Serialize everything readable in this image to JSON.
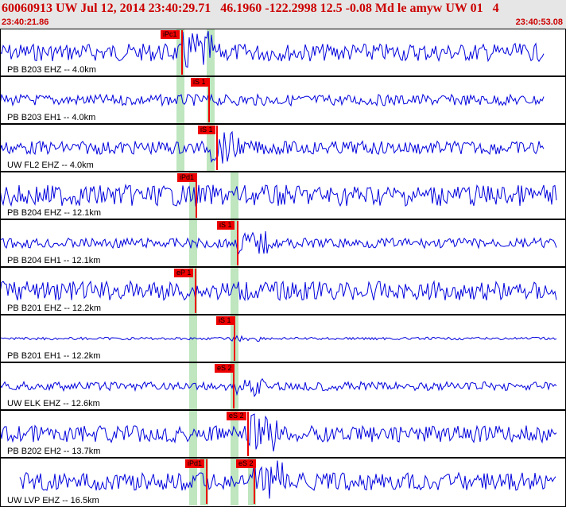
{
  "header": {
    "title": "60060913 UW Jul 12, 2014 23:40:29.71   46.1960 -122.2998 12.5 -0.08 Md le amyw UW 01   4",
    "start_time": "23:40:21.86",
    "end_time": "23:40:53.08"
  },
  "colors": {
    "trace": "#0000dd",
    "pick": "#ee0000",
    "window": "#bfe6bf",
    "header_bg": "#e6e6e6",
    "header_text": "#cc0000"
  },
  "channels": [
    {
      "label": "PB B203 EHZ -- 4.0km",
      "picks": [
        "iPc1"
      ],
      "amp": 0.8
    },
    {
      "label": "PB B203 EH1 -- 4.0km",
      "picks": [
        "iS 1"
      ],
      "amp": 0.5
    },
    {
      "label": "UW FL2 EHZ -- 4.0km",
      "picks": [
        "iS 1"
      ],
      "amp": 0.6
    },
    {
      "label": "PB B204 EHZ -- 12.1km",
      "picks": [
        "iPd1"
      ],
      "amp": 0.95
    },
    {
      "label": "PB B204 EH1 -- 12.1km",
      "picks": [
        "iS 1"
      ],
      "amp": 0.45
    },
    {
      "label": "PB B201 EHZ -- 12.2km",
      "picks": [
        "eP 1"
      ],
      "amp": 0.85
    },
    {
      "label": "PB B201 EH1 -- 12.2km",
      "picks": [
        "iS 1"
      ],
      "amp": 0.12
    },
    {
      "label": "UW ELK EHZ -- 12.6km",
      "picks": [
        "eS 2"
      ],
      "amp": 0.4
    },
    {
      "label": "PB B202 EH2 -- 13.7km",
      "picks": [
        "eS 2"
      ],
      "amp": 0.75
    },
    {
      "label": "UW LVP EHZ -- 16.5km",
      "picks": [
        "iPd1",
        "eS 2"
      ],
      "amp": 0.8
    }
  ]
}
